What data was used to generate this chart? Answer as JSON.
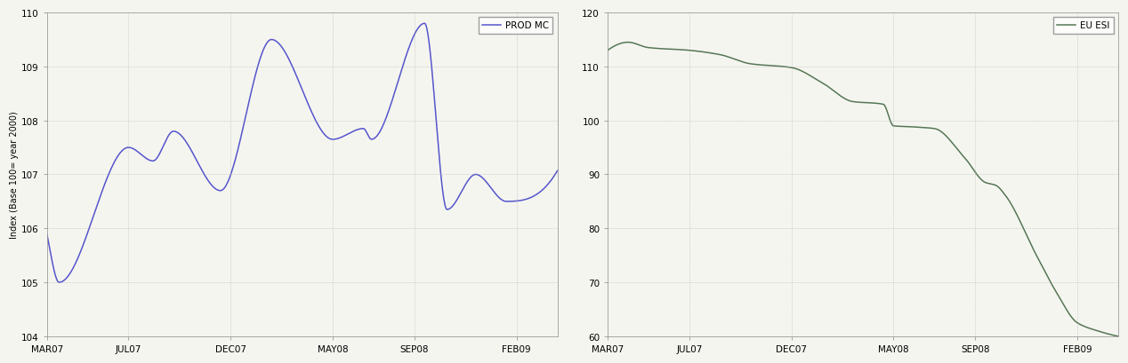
{
  "fig_width": 12.68,
  "fig_height": 4.1,
  "bg_color": "#f5f5f0",
  "panel1": {
    "ylabel": "Index (Base 100= year 2000)",
    "ylim": [
      104,
      110
    ],
    "yticks": [
      104,
      105,
      106,
      107,
      108,
      109,
      110
    ],
    "xtick_labels": [
      "MAR07",
      "JUL07",
      "DEC07",
      "MAY08",
      "SEP08",
      "FEB09"
    ],
    "xtick_pos": [
      0,
      4,
      9,
      14,
      18,
      23
    ],
    "line_color": "#5555cc",
    "legend_label": "PROD MC",
    "line_width": 1.1,
    "grid_color": "#aaaaaa",
    "grid_style": ":"
  },
  "panel2": {
    "ylim": [
      60,
      120
    ],
    "yticks": [
      60,
      70,
      80,
      90,
      100,
      110,
      120
    ],
    "xtick_labels": [
      "MAR07",
      "JUL07",
      "DEC07",
      "MAY08",
      "SEP08",
      "FEB09"
    ],
    "xtick_pos": [
      0,
      4,
      9,
      14,
      18,
      23
    ],
    "line_color": "#557755",
    "legend_label": "EU ESI",
    "line_width": 1.1,
    "grid_color": "#aaaaaa",
    "grid_style": ":"
  }
}
